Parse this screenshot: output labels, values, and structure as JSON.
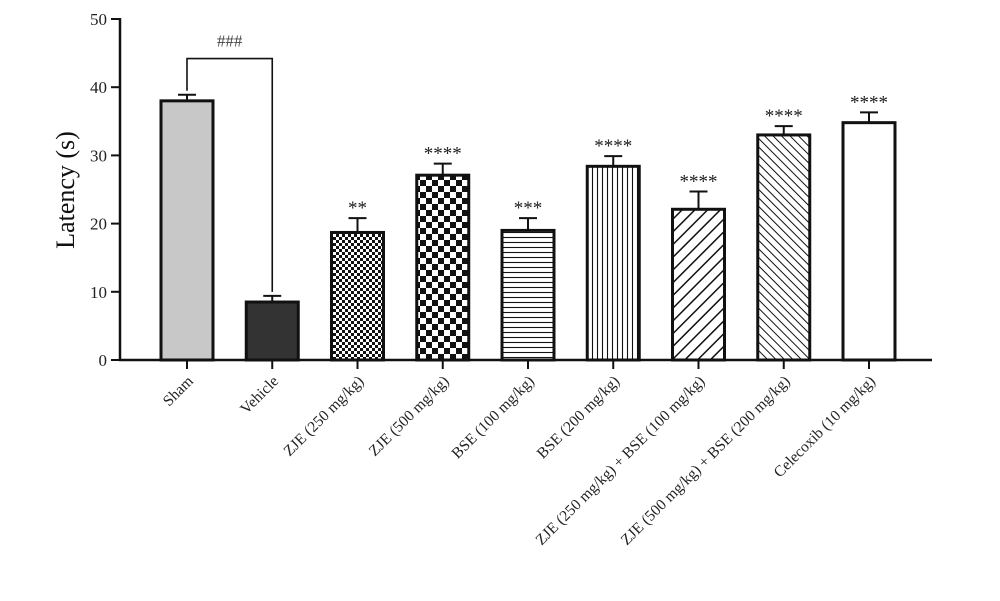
{
  "chart_data": {
    "type": "bar",
    "title": "",
    "xlabel": "",
    "ylabel": "Latency (s)",
    "ylim": [
      0,
      50
    ],
    "yticks": [
      0,
      10,
      20,
      30,
      40,
      50
    ],
    "grid": false,
    "legend": "none",
    "categories": [
      "Sham",
      "Vehicle",
      "ZJE (250 mg/kg)",
      "ZJE (500 mg/kg)",
      "BSE (100 mg/kg)",
      "BSE (200 mg/kg)",
      "ZJE (250 mg/kg) + BSE (100 mg/kg)",
      "ZJE (500 mg/kg) + BSE (200 mg/kg)",
      "Celecoxib (10 mg/kg)"
    ],
    "values": [
      38,
      8.5,
      18.7,
      27.1,
      19.0,
      28.4,
      22.1,
      33.0,
      34.8
    ],
    "errors": [
      0.9,
      0.9,
      2.1,
      1.7,
      1.8,
      1.5,
      2.6,
      1.3,
      1.5
    ],
    "significance": [
      "",
      "",
      "**",
      "****",
      "***",
      "****",
      "****",
      "****",
      "****"
    ],
    "fills": [
      "light-gray",
      "dark-gray",
      "fine-checker",
      "coarse-checker",
      "horizontal-lines",
      "vertical-lines",
      "diagonal-lines",
      "dense-diagonal-lines",
      "white"
    ],
    "comparison": {
      "from": "Sham",
      "to": "Vehicle",
      "label": "###"
    },
    "colors": {
      "sham": "#c8c8c8",
      "vehicle": "#333333",
      "outline": "#111111"
    }
  }
}
